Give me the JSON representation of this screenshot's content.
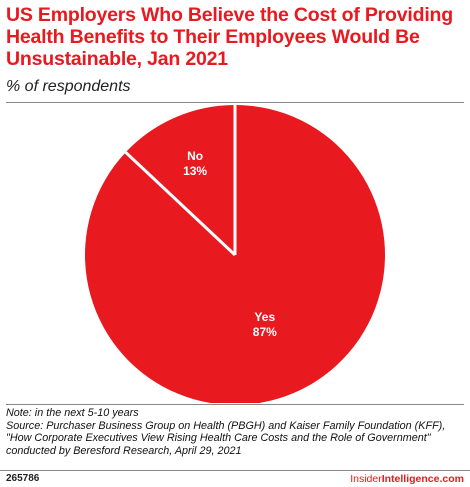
{
  "header": {
    "title": "US Employers Who Believe the Cost of Providing Health Benefits to Their Employees Would Be Unsustainable, Jan 2021",
    "subtitle": "% of respondents"
  },
  "chart_data": {
    "type": "pie",
    "title": "US Employers Who Believe the Cost of Providing Health Benefits to Their Employees Would Be Unsustainable, Jan 2021",
    "subtitle": "% of respondents",
    "categories": [
      "Yes",
      "No"
    ],
    "values": [
      87,
      13
    ],
    "value_labels": [
      "87%",
      "13%"
    ],
    "start": "12 o'clock",
    "direction": "clockwise",
    "slice_color": "#e8191f",
    "separator_color": "#ffffff",
    "label_color": "#ffffff"
  },
  "notes": {
    "note": "Note: in the next 5-10 years",
    "source_line1": "Source: Purchaser Business Group on Health (PBGH) and Kaiser Family Foundation (KFF),",
    "source_line2": "\"How Corporate Executives View Rising Health Care Costs and the Role of Government\"",
    "source_line3": "conducted by Beresford Research, April 29, 2021"
  },
  "footer": {
    "chart_id": "265786",
    "brand_prefix": "Insider",
    "brand_suffix": "Intelligence.com"
  },
  "colors": {
    "accent": "#e8191f",
    "rules": "#8a8a8a"
  }
}
